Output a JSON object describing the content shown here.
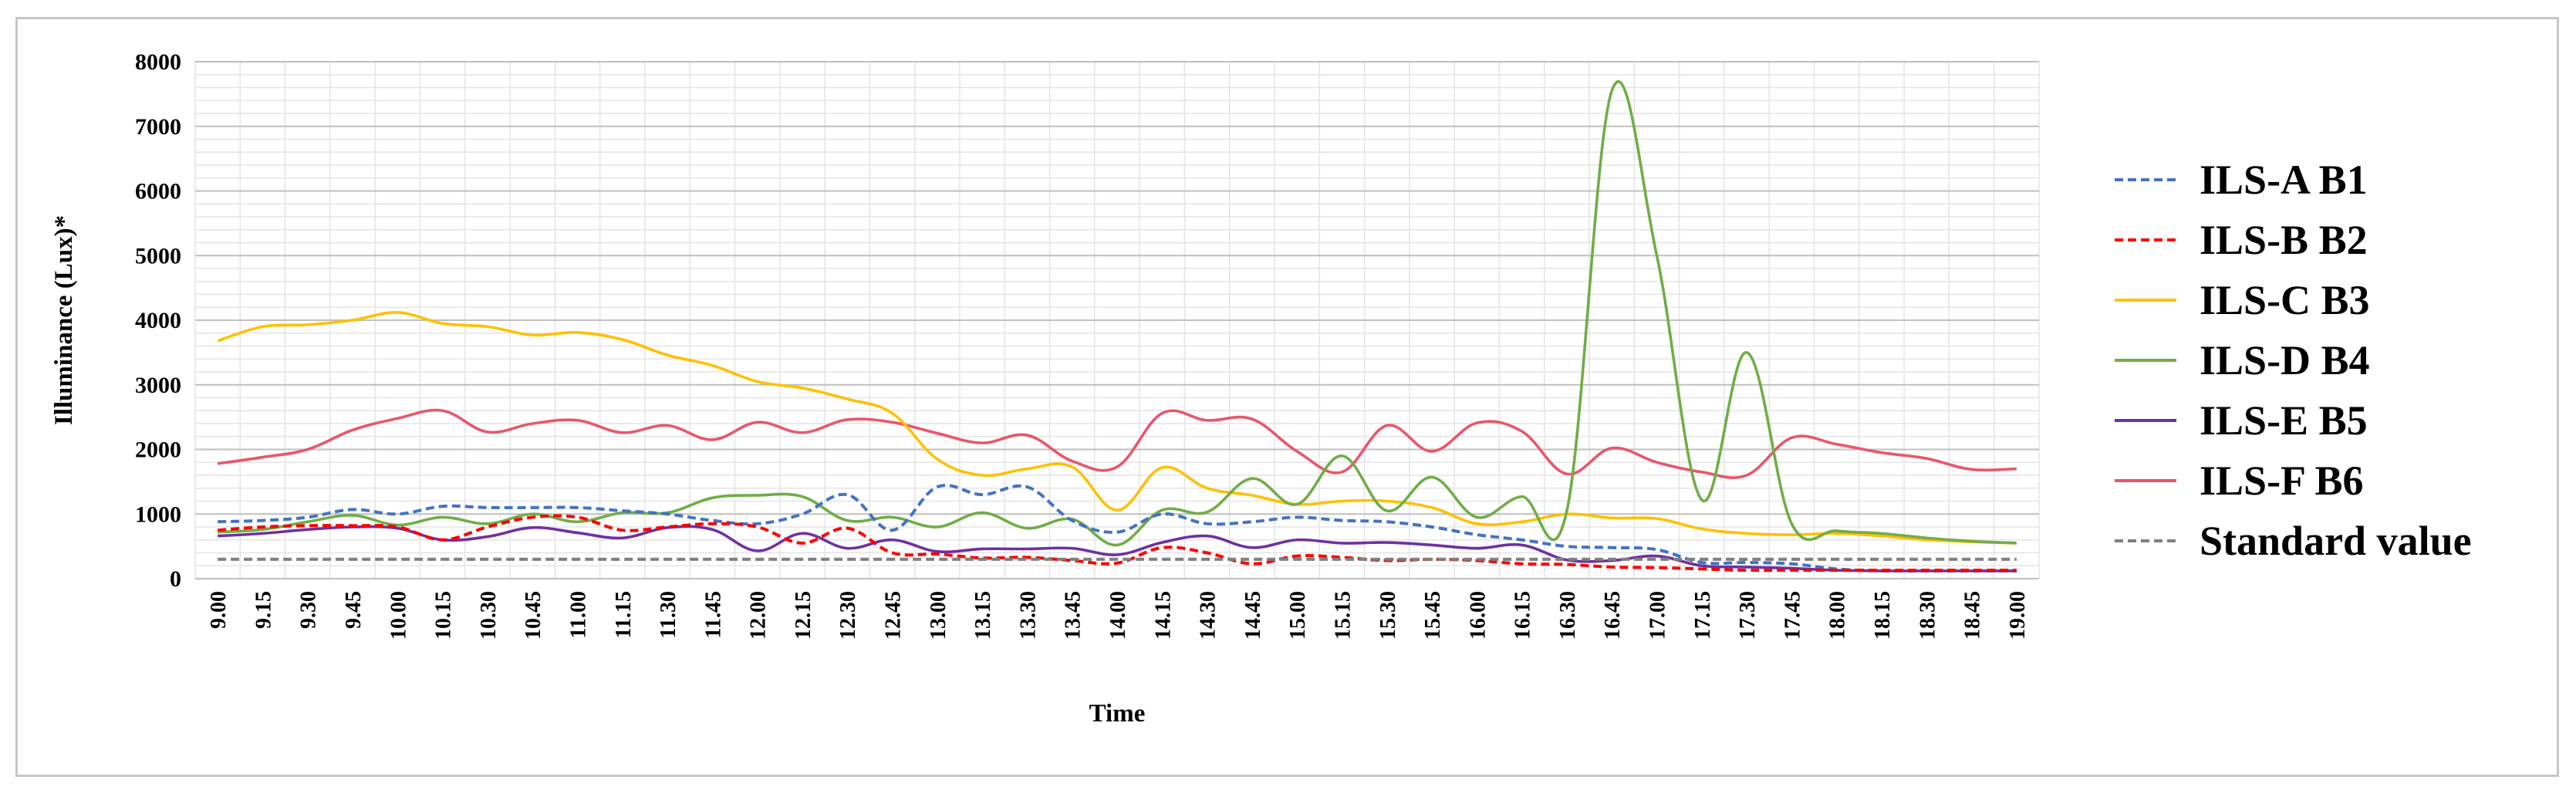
{
  "chart_data": {
    "type": "line",
    "xlabel": "Time",
    "ylabel": "Illuminance  (Lux)*",
    "ylim": [
      0,
      8000
    ],
    "yticks": [
      0,
      1000,
      2000,
      3000,
      4000,
      5000,
      6000,
      7000,
      8000
    ],
    "minor_gridlines": true,
    "legend_position": "right",
    "x": [
      "9.00",
      "9.15",
      "9.30",
      "9.45",
      "10.00",
      "10.15",
      "10.30",
      "10.45",
      "11.00",
      "11.15",
      "11.30",
      "11.45",
      "12.00",
      "12.15",
      "12.30",
      "12.45",
      "13.00",
      "13.15",
      "13.30",
      "13.45",
      "14.00",
      "14.15",
      "14.30",
      "14.45",
      "15.00",
      "15.15",
      "15.30",
      "15.45",
      "16.00",
      "16.15",
      "16.30",
      "16.45",
      "17.00",
      "17.15",
      "17.30",
      "17.45",
      "18.00",
      "18.15",
      "18.30",
      "18.45",
      "19.00"
    ],
    "series": [
      {
        "name": "ILS-A B1",
        "color": "#4472C4",
        "dash": "dashed",
        "values": [
          880,
          900,
          950,
          1070,
          1000,
          1120,
          1100,
          1100,
          1100,
          1050,
          1000,
          900,
          850,
          1000,
          1300,
          750,
          1420,
          1300,
          1420,
          900,
          720,
          1000,
          850,
          880,
          950,
          900,
          880,
          800,
          680,
          600,
          500,
          480,
          450,
          250,
          250,
          230,
          150,
          120,
          120,
          120,
          120
        ]
      },
      {
        "name": "ILS-B B2",
        "color": "#FF0000",
        "dash": "dashed",
        "values": [
          750,
          800,
          820,
          820,
          800,
          600,
          800,
          950,
          950,
          750,
          800,
          850,
          800,
          550,
          780,
          400,
          380,
          320,
          330,
          280,
          240,
          480,
          400,
          230,
          350,
          330,
          280,
          300,
          280,
          230,
          220,
          180,
          170,
          150,
          130,
          130,
          130,
          130,
          130,
          130,
          130
        ]
      },
      {
        "name": "ILS-C B3",
        "color": "#FFC000",
        "dash": "solid",
        "values": [
          3680,
          3900,
          3930,
          4000,
          4120,
          3950,
          3900,
          3770,
          3810,
          3700,
          3460,
          3300,
          3050,
          2950,
          2780,
          2560,
          1850,
          1600,
          1700,
          1730,
          1060,
          1720,
          1400,
          1290,
          1150,
          1200,
          1200,
          1100,
          850,
          880,
          1000,
          940,
          930,
          770,
          700,
          680,
          700,
          660,
          600,
          570,
          550
        ]
      },
      {
        "name": "ILS-D B4",
        "color": "#70AD47",
        "dash": "solid",
        "values": [
          720,
          760,
          880,
          980,
          830,
          950,
          850,
          1000,
          880,
          1020,
          1020,
          1250,
          1290,
          1270,
          900,
          950,
          800,
          1020,
          780,
          920,
          520,
          1060,
          1030,
          1550,
          1150,
          1900,
          1050,
          1570,
          950,
          1270,
          1050,
          7550,
          5000,
          1220,
          3500,
          850,
          740,
          700,
          630,
          580,
          550
        ]
      },
      {
        "name": "ILS-E B5",
        "color": "#7030A0",
        "dash": "solid",
        "values": [
          660,
          700,
          760,
          800,
          780,
          600,
          650,
          790,
          710,
          630,
          790,
          760,
          430,
          700,
          470,
          600,
          420,
          460,
          460,
          470,
          370,
          560,
          660,
          480,
          600,
          550,
          560,
          520,
          470,
          520,
          290,
          280,
          350,
          200,
          180,
          160,
          130,
          120,
          120,
          120,
          120
        ]
      },
      {
        "name": "ILS-F B6",
        "color": "#E8576A",
        "dash": "solid",
        "values": [
          1780,
          1880,
          2000,
          2300,
          2480,
          2600,
          2270,
          2400,
          2450,
          2260,
          2370,
          2150,
          2420,
          2260,
          2460,
          2420,
          2250,
          2100,
          2220,
          1820,
          1730,
          2560,
          2450,
          2470,
          1970,
          1650,
          2370,
          1970,
          2410,
          2280,
          1620,
          2020,
          1800,
          1650,
          1600,
          2180,
          2080,
          1950,
          1860,
          1690,
          1700
        ]
      },
      {
        "name": "Standard value",
        "color": "#7F7F7F",
        "dash": "dashed",
        "values": [
          300,
          300,
          300,
          300,
          300,
          300,
          300,
          300,
          300,
          300,
          300,
          300,
          300,
          300,
          300,
          300,
          300,
          300,
          300,
          300,
          300,
          300,
          300,
          300,
          300,
          300,
          300,
          300,
          300,
          300,
          300,
          300,
          300,
          300,
          300,
          300,
          300,
          300,
          300,
          300,
          300
        ]
      }
    ]
  }
}
